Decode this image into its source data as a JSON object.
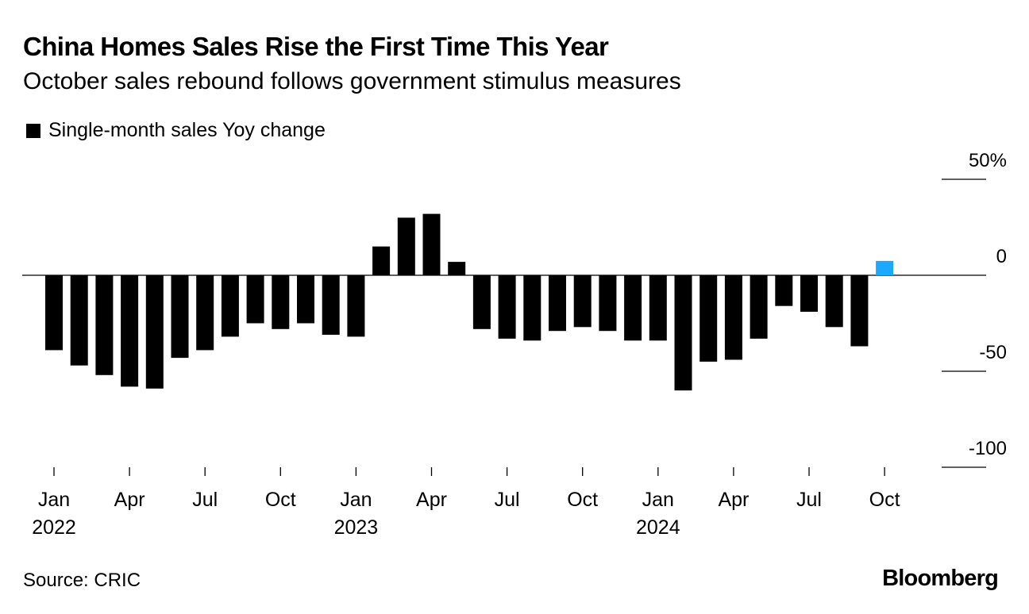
{
  "chart_data": {
    "type": "bar",
    "title": "China Homes Sales Rise the First Time This Year",
    "subtitle": "October sales rebound follows government stimulus measures",
    "legend": [
      {
        "label": "Single-month sales Yoy change",
        "color": "#000000"
      }
    ],
    "highlight_color": "#1ba9ff",
    "highlight_index": 33,
    "categories": [
      "Jan 2022",
      "Feb 2022",
      "Mar 2022",
      "Apr 2022",
      "May 2022",
      "Jun 2022",
      "Jul 2022",
      "Aug 2022",
      "Sep 2022",
      "Oct 2022",
      "Nov 2022",
      "Dec 2022",
      "Jan 2023",
      "Feb 2023",
      "Mar 2023",
      "Apr 2023",
      "May 2023",
      "Jun 2023",
      "Jul 2023",
      "Aug 2023",
      "Sep 2023",
      "Oct 2023",
      "Nov 2023",
      "Dec 2023",
      "Jan 2024",
      "Feb 2024",
      "Mar 2024",
      "Apr 2024",
      "May 2024",
      "Jun 2024",
      "Jul 2024",
      "Aug 2024",
      "Sep 2024",
      "Oct 2024"
    ],
    "values": [
      -39,
      -47,
      -52,
      -58,
      -59,
      -43,
      -39,
      -32,
      -25,
      -28,
      -25,
      -31,
      -32,
      15,
      30,
      32,
      7,
      -28,
      -33,
      -34,
      -29,
      -27,
      -29,
      -34,
      -34,
      -60,
      -45,
      -44,
      -33,
      -16,
      -19,
      -27,
      -37,
      7.5
    ],
    "ylim": [
      -100,
      50
    ],
    "yticks": [
      {
        "value": 50,
        "label": "50%"
      },
      {
        "value": 0,
        "label": "0"
      },
      {
        "value": -50,
        "label": "-50"
      },
      {
        "value": -100,
        "label": "-100"
      }
    ],
    "xticks": [
      {
        "index": 0,
        "month": "Jan",
        "year": "2022"
      },
      {
        "index": 3,
        "month": "Apr",
        "year": ""
      },
      {
        "index": 6,
        "month": "Jul",
        "year": ""
      },
      {
        "index": 9,
        "month": "Oct",
        "year": ""
      },
      {
        "index": 12,
        "month": "Jan",
        "year": "2023"
      },
      {
        "index": 15,
        "month": "Apr",
        "year": ""
      },
      {
        "index": 18,
        "month": "Jul",
        "year": ""
      },
      {
        "index": 21,
        "month": "Oct",
        "year": ""
      },
      {
        "index": 24,
        "month": "Jan",
        "year": "2024"
      },
      {
        "index": 27,
        "month": "Apr",
        "year": ""
      },
      {
        "index": 30,
        "month": "Jul",
        "year": ""
      },
      {
        "index": 33,
        "month": "Oct",
        "year": ""
      }
    ]
  },
  "footer": {
    "source": "Source: CRIC",
    "brand": "Bloomberg"
  }
}
